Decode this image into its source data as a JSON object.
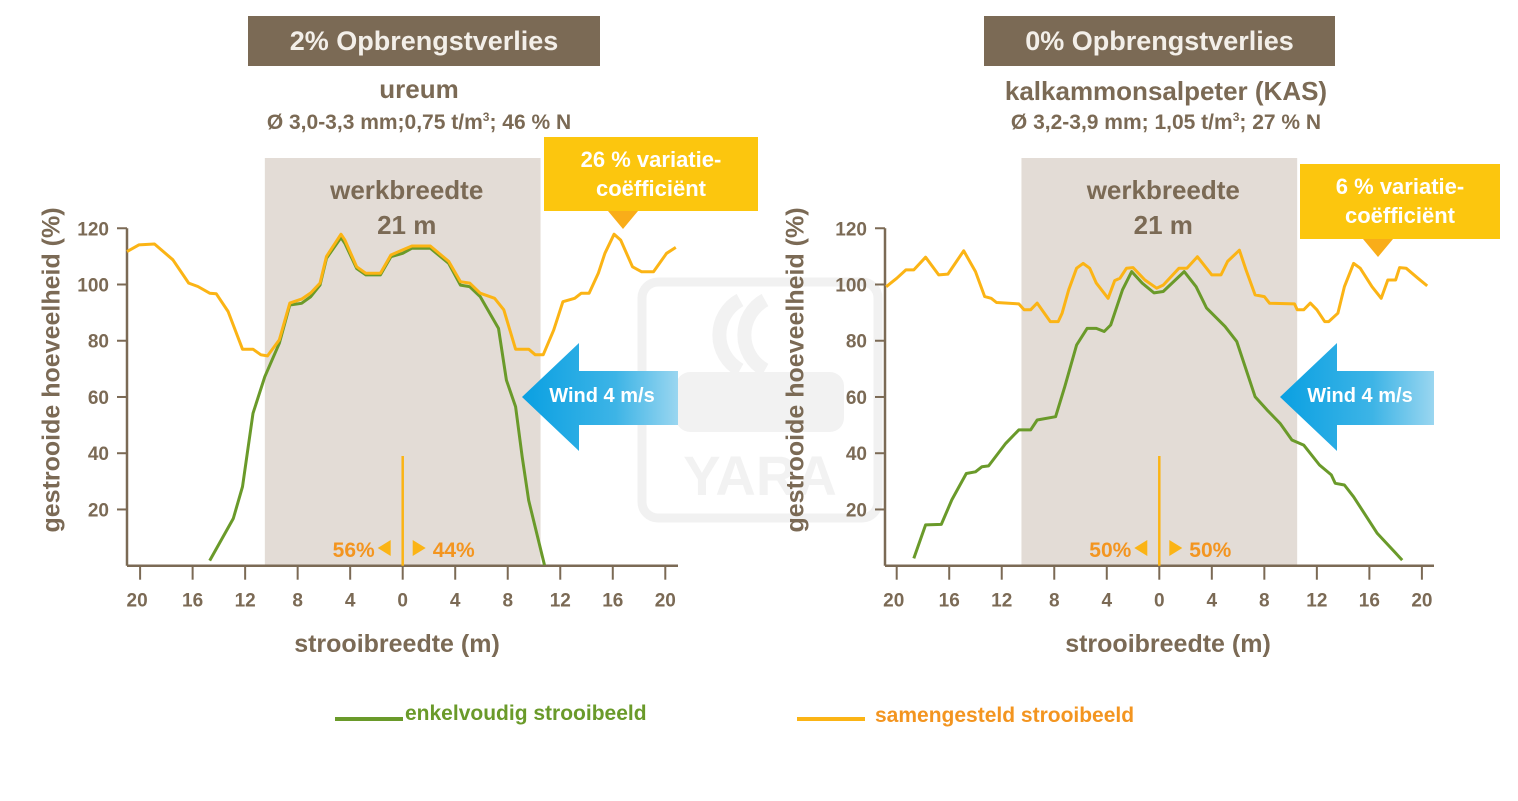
{
  "colors": {
    "brown": "#7b6a55",
    "samengesteld": "#fbb415",
    "enkelvoudig": "#6a9a2a",
    "shade": "#e3dcd6",
    "callout": "#fcc60e",
    "split_text": "#f39520",
    "wind": "#1aa0e0"
  },
  "watermark": "YARA",
  "legend": {
    "enkelvoudig": "enkelvoudig strooibeeld",
    "samengesteld": "samengesteld strooibeeld"
  },
  "chart_data": [
    {
      "type": "line",
      "title": "2% Opbrengstverlies",
      "product": "ureum",
      "specs_a": "Ø 3,0-3,3 mm;0,75  t/m",
      "specs_sup": "3",
      "specs_b": ";  46 %  N",
      "callout_line1": "26 %  variatie-",
      "callout_line2": "coëfficiënt",
      "work_width_label": "werkbreedte",
      "work_width_value": "21 m",
      "work_width_range": [
        -10.5,
        10.5
      ],
      "wind_label": "Wind 4 m/s",
      "split_left": "56%",
      "split_right": "44%",
      "xlabel": "strooibreedte (m)",
      "ylabel": "gestrooide hoeveelheid (%)",
      "xticks": [
        -20,
        -16,
        -12,
        -8,
        -4,
        0,
        4,
        8,
        12,
        16,
        20
      ],
      "xtick_labels": [
        "20",
        "16",
        "12",
        "8",
        "4",
        "0",
        "4",
        "8",
        "12",
        "16",
        "20"
      ],
      "yticks": [
        20,
        40,
        60,
        80,
        100,
        120
      ],
      "xlim": [
        -21.5,
        21
      ],
      "ylim": [
        0,
        120
      ],
      "series": [
        {
          "name": "samengesteld strooibeeld",
          "x": [
            -21,
            -20.1,
            -18.9,
            -17.5,
            -16.3,
            -15.6,
            -14.7,
            -14.2,
            -13.3,
            -12.2,
            -11.4,
            -10.8,
            -10.3,
            -9.4,
            -8.6,
            -7.7,
            -7,
            -6.3,
            -5.8,
            -4.7,
            -4.4,
            -3.5,
            -2.8,
            -1.7,
            -0.9,
            0,
            0.7,
            2.1,
            3.5,
            4.4,
            5.1,
            5.9,
            7,
            7.7,
            8.6,
            9.6,
            10.1,
            10.7,
            11.5,
            12.2,
            13.1,
            13.6,
            14.2,
            14.9,
            15.4,
            16.1,
            16.6,
            17.5,
            18.2,
            19.1,
            20.1,
            20.8
          ],
          "y": [
            111.7,
            114.1,
            114.4,
            108.8,
            100.5,
            99.3,
            96.9,
            96.7,
            90.4,
            77,
            77,
            75,
            74.6,
            80.3,
            93.4,
            94.8,
            97,
            100.5,
            110,
            117.9,
            115.8,
            106.3,
            104,
            104,
            110.5,
            112.3,
            113.7,
            113.7,
            108.2,
            101,
            100.5,
            96.9,
            95.1,
            91,
            77,
            77,
            75,
            75,
            83.8,
            93.9,
            95.1,
            96.9,
            96.9,
            104,
            111.1,
            117.9,
            115.8,
            106.3,
            104.5,
            104.5,
            111.1,
            113.2
          ]
        },
        {
          "name": "enkelvoudig strooibeeld",
          "x": [
            -14.7,
            -12.9,
            -12.2,
            -11.4,
            -10.5,
            -9.4,
            -8.6,
            -7.7,
            -7,
            -6.3,
            -5.8,
            -4.7,
            -4.4,
            -3.5,
            -2.8,
            -1.7,
            -0.9,
            0,
            0.7,
            2.1,
            3.5,
            4.4,
            5.1,
            5.9,
            7.3,
            7.9,
            8.6,
            9.1,
            9.6,
            10.8
          ],
          "y": [
            1.8,
            16.8,
            28.1,
            54.2,
            67.2,
            79.1,
            92.7,
            93.3,
            95.7,
            99.8,
            109.3,
            116.7,
            114.6,
            105.7,
            103.4,
            103.4,
            109.9,
            111.1,
            112.9,
            112.9,
            107.5,
            99.8,
            99.2,
            95.7,
            84.4,
            66,
            56.5,
            38.7,
            23.2,
            0.2
          ]
        }
      ]
    },
    {
      "type": "line",
      "title": "0% Opbrengstverlies",
      "product": "kalkammonsalpeter (KAS)",
      "specs_a": "Ø 3,2-3,9 mm;  1,05 t/m",
      "specs_sup": "3",
      "specs_b": ";  27 %  N",
      "callout_line1": "6 %  variatie-",
      "callout_line2": "coëfficiënt",
      "work_width_label": "werkbreedte",
      "work_width_value": "21 m",
      "work_width_range": [
        -10.5,
        10.5
      ],
      "wind_label": "Wind 4 m/s",
      "split_left": "50%",
      "split_right": "50%",
      "xlabel": "strooibreedte (m)",
      "ylabel": "gestrooide hoeveelheid (%)",
      "xticks": [
        -20,
        -16,
        -12,
        -8,
        -4,
        0,
        4,
        8,
        12,
        16,
        20
      ],
      "xtick_labels": [
        "20",
        "16",
        "12",
        "8",
        "4",
        "0",
        "4",
        "8",
        "12",
        "16",
        "20"
      ],
      "yticks": [
        20,
        40,
        60,
        80,
        100,
        120
      ],
      "xlim": [
        -21,
        21
      ],
      "ylim": [
        0,
        120
      ],
      "series": [
        {
          "name": "samengesteld strooibeeld",
          "x": [
            -20.8,
            -20,
            -19.3,
            -18.7,
            -17.8,
            -16.8,
            -16.1,
            -14.9,
            -14,
            -13.3,
            -12.8,
            -12.4,
            -10.7,
            -10.3,
            -9.8,
            -9.3,
            -8.3,
            -7.7,
            -7.4,
            -6.9,
            -6.3,
            -5.8,
            -5.3,
            -4.8,
            -3.9,
            -3.4,
            -3,
            -2.5,
            -2,
            -1.1,
            -0.2,
            0.3,
            1.5,
            2.1,
            2.9,
            4,
            4.7,
            5.2,
            6.1,
            6.6,
            7.3,
            8,
            8.4,
            10.3,
            10.5,
            11,
            11.5,
            12,
            12.6,
            12.9,
            13.6,
            14.1,
            14.8,
            15.3,
            16.2,
            16.9,
            17.4,
            18,
            18.3,
            18.8,
            19.7,
            20.4
          ],
          "y": [
            99.2,
            102.2,
            105.2,
            105.2,
            109.7,
            103.4,
            103.7,
            112,
            104.6,
            95.7,
            95.1,
            93.6,
            93.1,
            91,
            91,
            93.4,
            86.8,
            86.8,
            89.8,
            98.1,
            105.8,
            107.5,
            105.8,
            100.5,
            95.1,
            101.4,
            102.2,
            105.8,
            106,
            101.6,
            98.7,
            99.8,
            105.8,
            105.8,
            109.9,
            103.4,
            103.4,
            108.2,
            112.2,
            105.2,
            96.3,
            95.7,
            93.3,
            93.1,
            91,
            91,
            93.4,
            91,
            86.8,
            86.8,
            89.8,
            99.2,
            107.5,
            105.8,
            99.2,
            95.1,
            101.6,
            101.6,
            106,
            105.8,
            102.2,
            99.5
          ]
        },
        {
          "name": "enkelvoudig strooibeeld",
          "x": [
            -18.7,
            -17.8,
            -16.6,
            -15.8,
            -14.7,
            -14,
            -13.5,
            -13,
            -11.7,
            -10.7,
            -9.8,
            -9.3,
            -7.9,
            -7.2,
            -6.3,
            -5.5,
            -4.8,
            -4.2,
            -3.7,
            -2.8,
            -2.1,
            -1.3,
            -0.4,
            0.3,
            1.9,
            2.8,
            3.6,
            5,
            5.9,
            7.3,
            8.2,
            9.2,
            10.1,
            11,
            12.2,
            13.1,
            13.4,
            14.1,
            14.8,
            16.6,
            18.5
          ],
          "y": [
            2.6,
            14.5,
            14.7,
            23.4,
            32.8,
            33.4,
            35.2,
            35.5,
            43.5,
            48.3,
            48.3,
            51.8,
            53,
            63.7,
            78.5,
            84.4,
            84.4,
            83.3,
            85.6,
            98.1,
            104.6,
            100.5,
            97,
            97.5,
            104.6,
            99.2,
            91.6,
            85.1,
            79.7,
            60.1,
            55.4,
            50.6,
            44.7,
            42.9,
            35.8,
            32.3,
            29.3,
            28.7,
            24.5,
            11.5,
            2
          ]
        }
      ]
    }
  ]
}
